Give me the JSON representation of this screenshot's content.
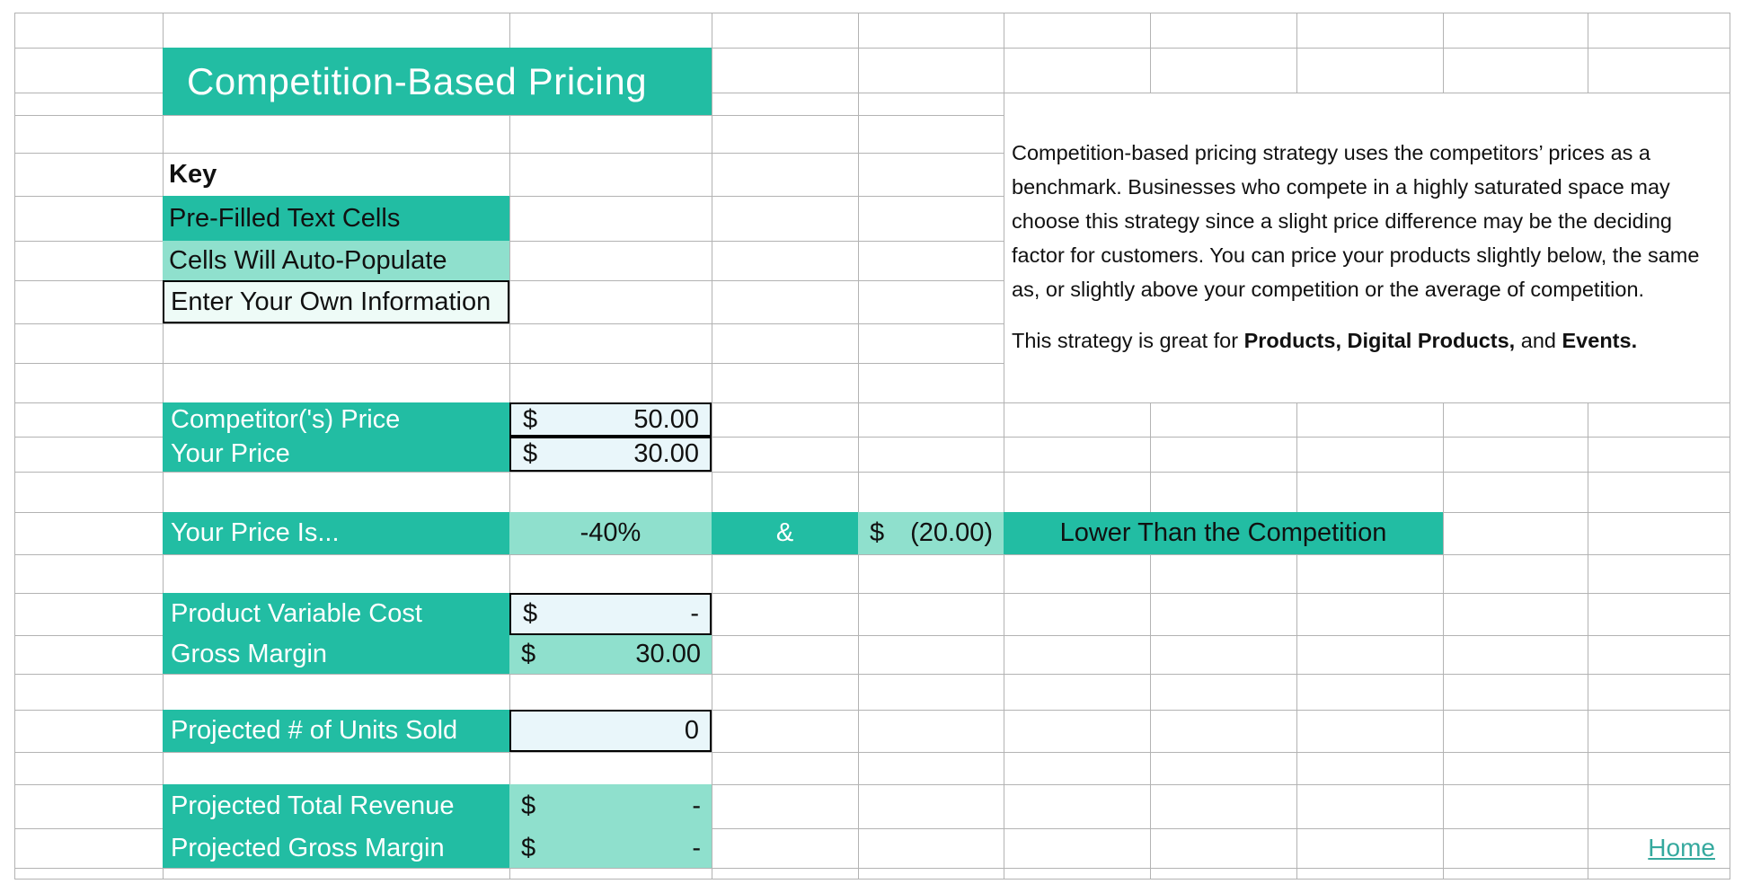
{
  "banner": {
    "title": "Competition-Based Pricing"
  },
  "key": {
    "heading": "Key",
    "prefilled": "Pre-Filled Text Cells",
    "autopopulate": "Cells Will Auto-Populate",
    "enter_own": "Enter Your Own Information"
  },
  "description": {
    "body": "Competition-based pricing strategy uses the competitors’ prices as a benchmark. Businesses who compete in a highly saturated space may choose this strategy since a slight price difference may be the deciding factor for customers. You can price your products slightly below, the same as, or slightly above your competition or the average of competition.",
    "strategy": {
      "s1": "This strategy is great for ",
      "s2": "Products, Digital Products,",
      "s3": " and ",
      "s4": "Events."
    }
  },
  "pricing": {
    "competitor_price": {
      "label": "Competitor('s) Price",
      "currency": "$",
      "value": "50.00"
    },
    "your_price": {
      "label": "Your Price",
      "currency": "$",
      "value": "30.00"
    },
    "comparison": {
      "label": "Your Price Is...",
      "percent": "-40%",
      "conjunction": "&",
      "currency": "$",
      "difference": "(20.00)",
      "verdict": "Lower Than the Competition"
    },
    "product_variable_cost": {
      "label": "Product Variable Cost",
      "currency": "$",
      "value": "-"
    },
    "gross_margin": {
      "label": "Gross Margin",
      "currency": "$",
      "value": "30.00"
    },
    "projected_units_sold": {
      "label": "Projected # of Units Sold",
      "value": "0"
    },
    "projected_total_revenue": {
      "label": "Projected Total Revenue",
      "currency": "$",
      "value": "-"
    },
    "projected_gross_margin": {
      "label": "Projected Gross Margin",
      "currency": "$",
      "value": "-"
    }
  },
  "nav": {
    "home": "Home"
  },
  "colors": {
    "teal": "#22bda3",
    "teal_light": "#8fe0cd",
    "input_blue": "#e9f6fa",
    "input_mint": "#eefbf7",
    "grid_line": "#b3b3b3",
    "link": "#35a99e"
  }
}
